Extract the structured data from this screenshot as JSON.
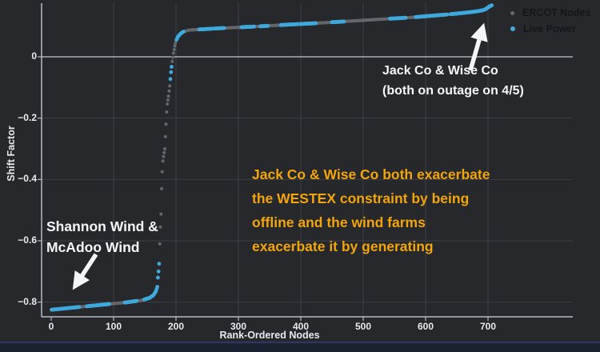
{
  "legend": {
    "items": [
      {
        "label": "ERCOT Nodes",
        "color": "#63666c"
      },
      {
        "label": "Live Power",
        "color": "#3fa9dc"
      }
    ]
  },
  "axes": {
    "x": {
      "label": "Rank-Ordered Nodes",
      "ticks": [
        "0",
        "100",
        "200",
        "300",
        "400",
        "500",
        "600",
        "700"
      ]
    },
    "y": {
      "label": "Shift Factor",
      "ticks": [
        "0",
        "−0.2",
        "−0.4",
        "−0.6",
        "−0.8"
      ]
    }
  },
  "annotations": {
    "jack": {
      "line1": "Jack Co & Wise Co",
      "line2": "(both on outage on 4/5)",
      "color": "#f4f6f8"
    },
    "shannon": {
      "line1": "Shannon Wind &",
      "line2": "McAdoo Wind",
      "color": "#f4f6f8"
    },
    "callout": {
      "lines": [
        "Jack Co & Wise Co both exacerbate",
        "the WESTEX constraint by being",
        "offline and the wind farms",
        "exacerbate it by generating"
      ],
      "color": "#f2a50c"
    }
  },
  "chart_data": {
    "type": "scatter",
    "title": "",
    "xlabel": "Rank-Ordered Nodes",
    "ylabel": "Shift Factor",
    "x_ticks": [
      0,
      100,
      200,
      300,
      400,
      500,
      600,
      700
    ],
    "y_ticks": [
      0,
      -0.2,
      -0.4,
      -0.6,
      -0.8
    ],
    "ylim": [
      -0.85,
      0.18
    ],
    "grid": true,
    "background": "#26282b",
    "gridline_color": "#3c3f45",
    "zeroline_color": "#a9aeb5",
    "axisline_color": "#b6bcc3",
    "legend_position": "top-right",
    "series": [
      {
        "name": "ERCOT Nodes",
        "color": "#63666c",
        "marker": "dot"
      },
      {
        "name": "Live Power",
        "color": "#3fa9dc",
        "marker": "dot"
      }
    ],
    "curve_anchors": [
      [
        0,
        -0.825
      ],
      [
        40,
        -0.817
      ],
      [
        80,
        -0.809
      ],
      [
        120,
        -0.801
      ],
      [
        145,
        -0.794
      ],
      [
        158,
        -0.786
      ],
      [
        164,
        -0.777
      ],
      [
        168,
        -0.764
      ],
      [
        170,
        -0.75
      ],
      [
        171,
        -0.72
      ],
      [
        172,
        -0.7
      ],
      [
        173,
        -0.675
      ],
      [
        174,
        -0.61
      ],
      [
        175,
        -0.555
      ],
      [
        176,
        -0.513
      ],
      [
        177,
        -0.43
      ],
      [
        178,
        -0.375
      ],
      [
        179,
        -0.34
      ],
      [
        180,
        -0.325
      ],
      [
        182,
        -0.3
      ],
      [
        184,
        -0.22
      ],
      [
        185,
        -0.18
      ],
      [
        186,
        -0.154
      ],
      [
        188,
        -0.128
      ],
      [
        190,
        -0.095
      ],
      [
        192,
        -0.05
      ],
      [
        194,
        -0.015
      ],
      [
        196,
        0.012
      ],
      [
        198,
        0.035
      ],
      [
        200,
        0.052
      ],
      [
        203,
        0.065
      ],
      [
        207,
        0.075
      ],
      [
        212,
        0.082
      ],
      [
        220,
        0.087
      ],
      [
        260,
        0.092
      ],
      [
        300,
        0.096
      ],
      [
        340,
        0.1
      ],
      [
        380,
        0.105
      ],
      [
        420,
        0.109
      ],
      [
        460,
        0.114
      ],
      [
        500,
        0.119
      ],
      [
        540,
        0.124
      ],
      [
        575,
        0.128
      ],
      [
        605,
        0.133
      ],
      [
        635,
        0.138
      ],
      [
        660,
        0.143
      ],
      [
        678,
        0.147
      ],
      [
        690,
        0.151
      ],
      [
        696,
        0.155
      ],
      [
        700,
        0.161
      ],
      [
        703,
        0.165
      ],
      [
        706,
        0.168
      ]
    ],
    "live_power_rank_ranges": [
      [
        1,
        45
      ],
      [
        57,
        93
      ],
      [
        118,
        137
      ],
      [
        149,
        173
      ],
      [
        191,
        193
      ],
      [
        201,
        212
      ],
      [
        237,
        258
      ],
      [
        262,
        277
      ],
      [
        305,
        325
      ],
      [
        335,
        347
      ],
      [
        368,
        395
      ],
      [
        398,
        424
      ],
      [
        450,
        469
      ],
      [
        543,
        568
      ],
      [
        584,
        634
      ],
      [
        640,
        695
      ],
      [
        697,
        706
      ]
    ],
    "n_points": 707
  }
}
